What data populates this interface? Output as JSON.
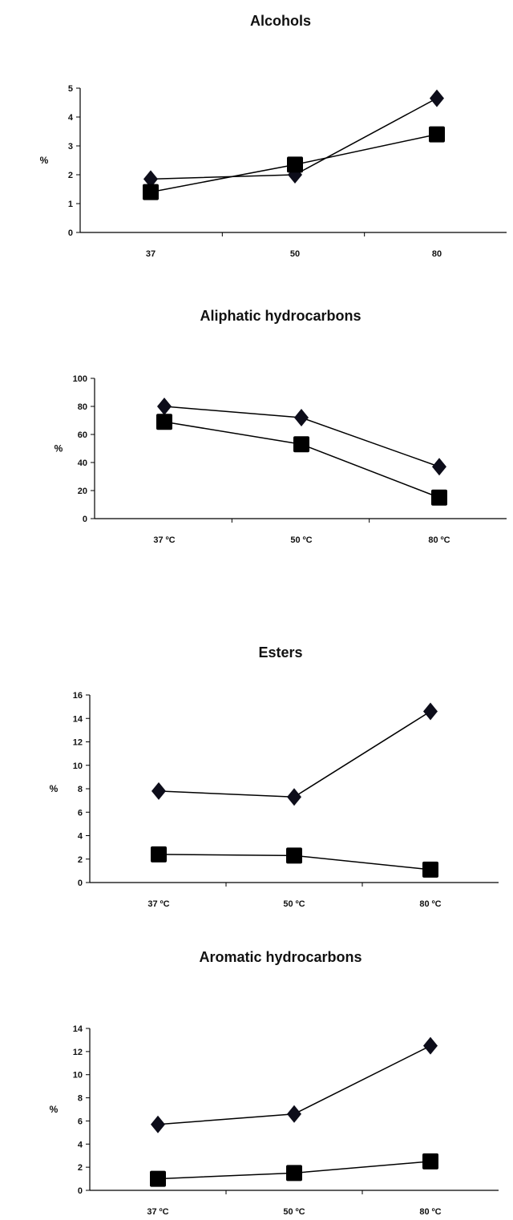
{
  "chart_data": [
    {
      "type": "line",
      "title": "Alcohols",
      "ylabel": "%",
      "xlabel": "",
      "categories": [
        "37",
        "50",
        "80"
      ],
      "ylim": [
        0,
        5
      ],
      "yticks": [
        "0",
        "1",
        "2",
        "3",
        "4",
        "5"
      ],
      "series": [
        {
          "marker": "diamond",
          "values": [
            1.85,
            2.0,
            4.65
          ]
        },
        {
          "marker": "square",
          "values": [
            1.4,
            2.35,
            3.4
          ]
        }
      ]
    },
    {
      "type": "line",
      "title": "Aliphatic hydrocarbons",
      "ylabel": "%",
      "xlabel": "",
      "categories": [
        "37 ºC",
        "50 ºC",
        "80 ºC"
      ],
      "ylim": [
        0,
        100
      ],
      "yticks": [
        "0",
        "20",
        "40",
        "60",
        "80",
        "100"
      ],
      "series": [
        {
          "marker": "diamond",
          "values": [
            80,
            72,
            37
          ]
        },
        {
          "marker": "square",
          "values": [
            69,
            53,
            15
          ]
        }
      ]
    },
    {
      "type": "line",
      "title": "Esters",
      "ylabel": "%",
      "xlabel": "",
      "categories": [
        "37 ºC",
        "50 ºC",
        "80 ºC"
      ],
      "ylim": [
        0,
        16
      ],
      "yticks": [
        "0",
        "2",
        "4",
        "6",
        "8",
        "10",
        "12",
        "14",
        "16"
      ],
      "series": [
        {
          "marker": "diamond",
          "values": [
            7.8,
            7.3,
            14.6
          ]
        },
        {
          "marker": "square",
          "values": [
            2.4,
            2.3,
            1.1
          ]
        }
      ]
    },
    {
      "type": "line",
      "title": "Aromatic hydrocarbons",
      "ylabel": "%",
      "xlabel": "",
      "categories": [
        "37 ºC",
        "50 ºC",
        "80 ºC"
      ],
      "ylim": [
        0,
        14
      ],
      "yticks": [
        "0",
        "2",
        "4",
        "6",
        "8",
        "10",
        "12",
        "14"
      ],
      "series": [
        {
          "marker": "diamond",
          "values": [
            5.7,
            6.6,
            12.5
          ]
        },
        {
          "marker": "square",
          "values": [
            1.0,
            1.5,
            2.5
          ]
        }
      ]
    }
  ]
}
